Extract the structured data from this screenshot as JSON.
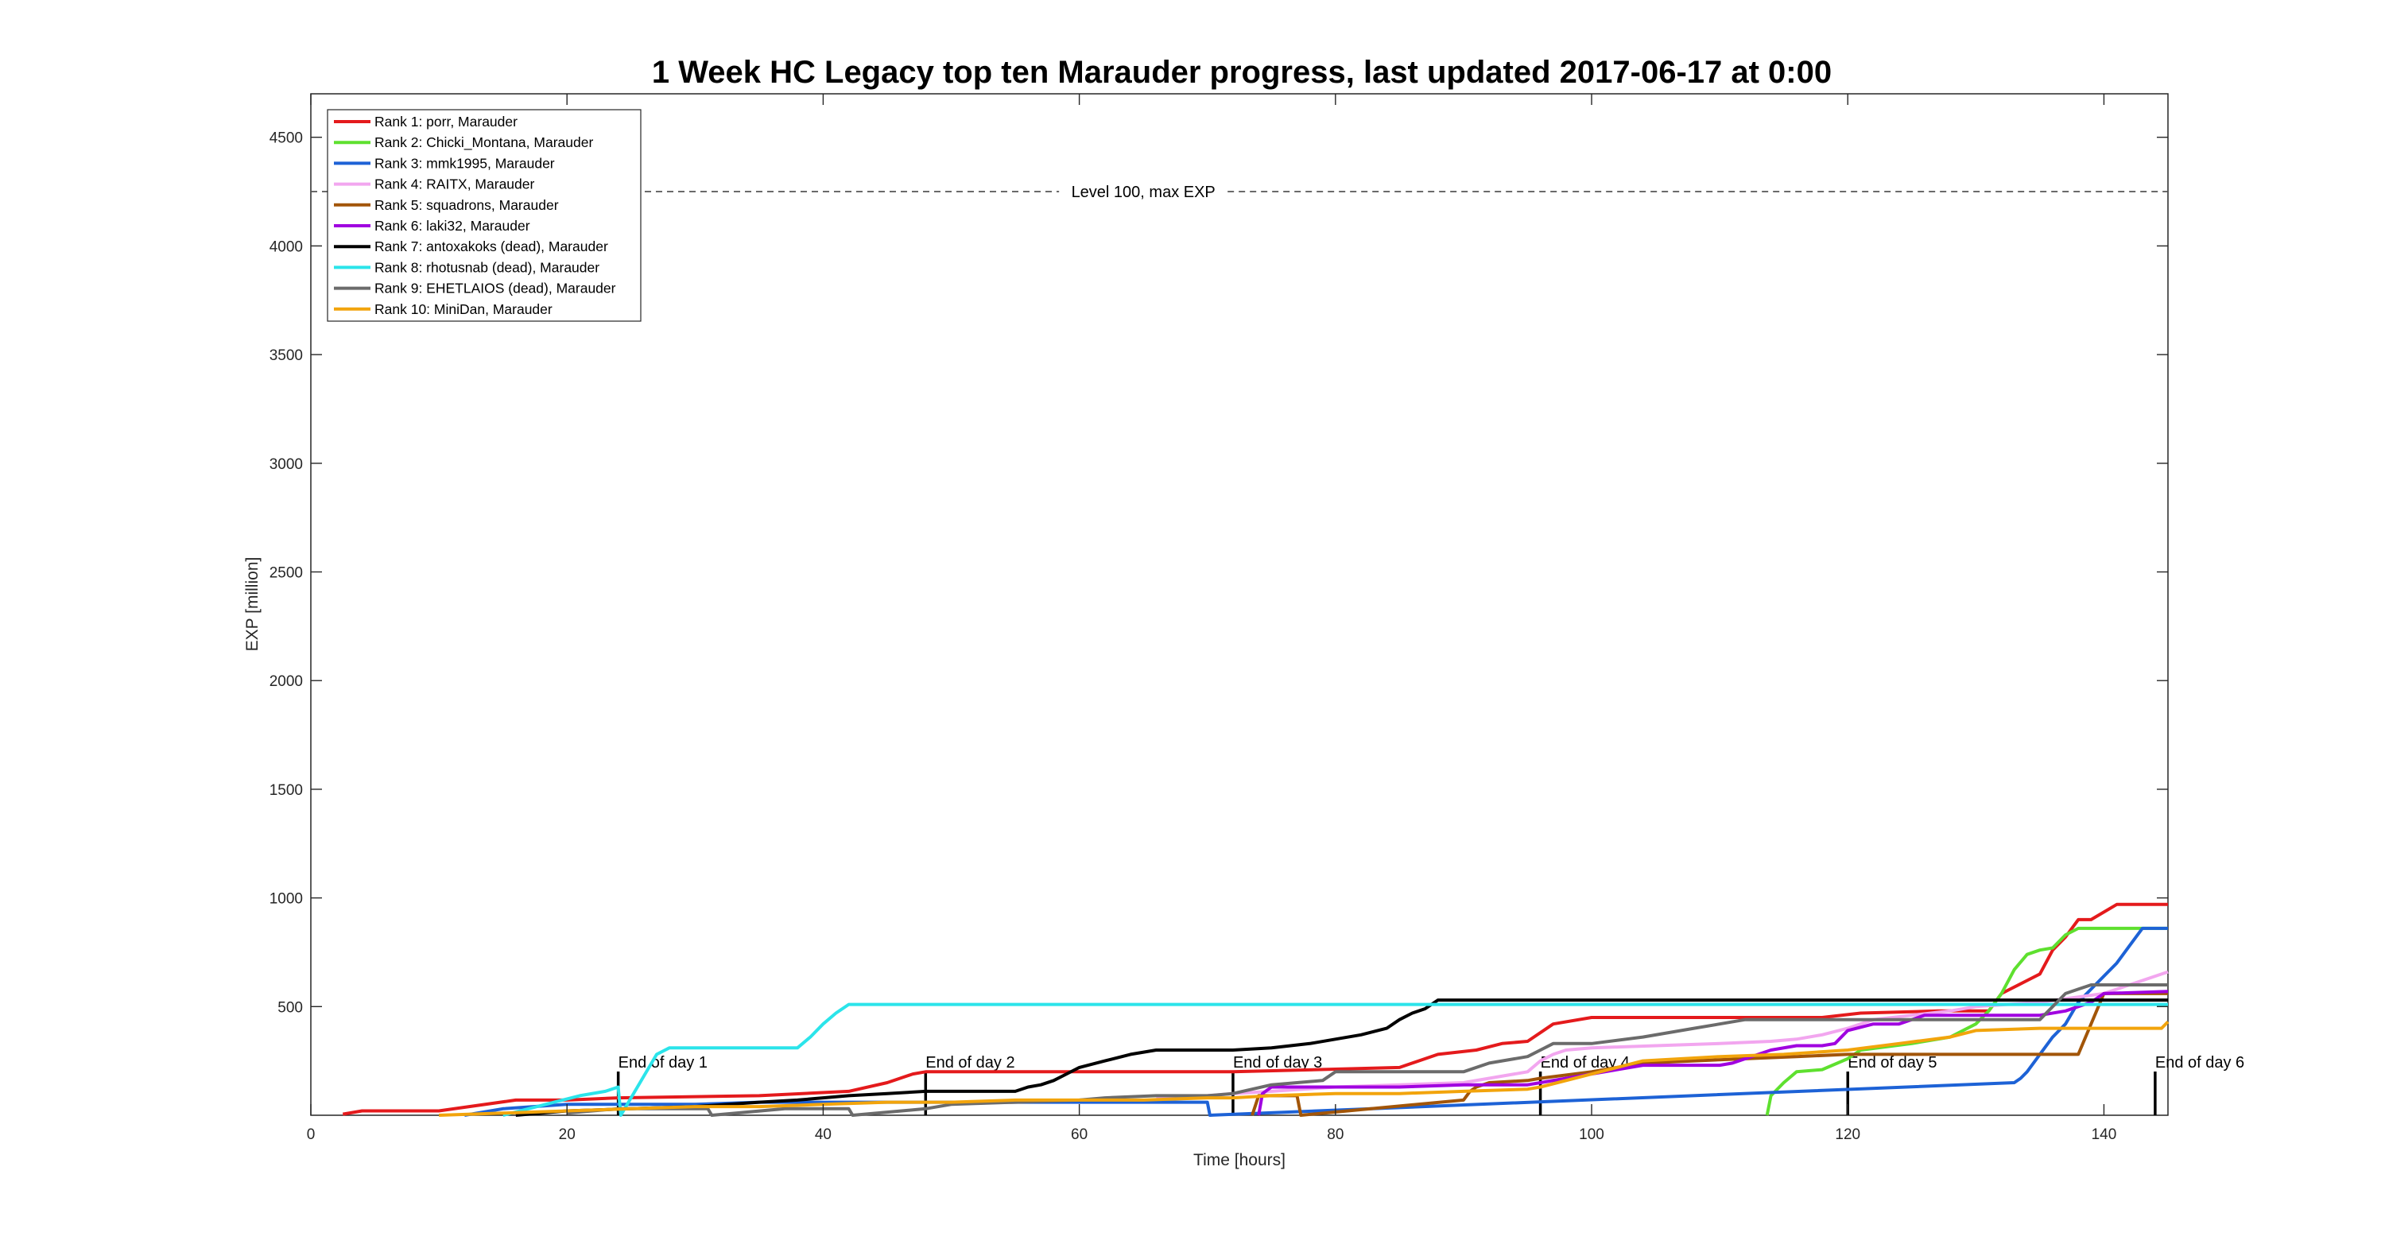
{
  "chart_data": {
    "type": "line",
    "title": "1 Week HC Legacy top ten Marauder progress, last updated 2017-06-17 at 0:00",
    "xlabel": "Time [hours]",
    "ylabel": "EXP [million]",
    "xlim": [
      0,
      145
    ],
    "ylim": [
      0,
      4700
    ],
    "xticks": [
      0,
      20,
      40,
      60,
      80,
      100,
      120,
      140
    ],
    "yticks": [
      500,
      1000,
      1500,
      2000,
      2500,
      3000,
      3500,
      4000,
      4500
    ],
    "grid": false,
    "legend_position": "top-left",
    "max_exp_line": {
      "y": 4250,
      "label": "Level 100, max EXP"
    },
    "day_markers": [
      {
        "x": 24,
        "label": "End of day 1"
      },
      {
        "x": 48,
        "label": "End of day 2"
      },
      {
        "x": 72,
        "label": "End of day 3"
      },
      {
        "x": 96,
        "label": "End of day 4"
      },
      {
        "x": 120,
        "label": "End of day 5"
      },
      {
        "x": 144,
        "label": "End of day 6"
      }
    ],
    "series": [
      {
        "name": "Rank 1: porr, Marauder",
        "color": "#e41a1c",
        "x": [
          2.5,
          4,
          10,
          16,
          17,
          20,
          24,
          35,
          42,
          45,
          47,
          48,
          55,
          57,
          72,
          85,
          88,
          91,
          93,
          95,
          97,
          100,
          110,
          118,
          121,
          127,
          131,
          132,
          134,
          135,
          136,
          137,
          138,
          139,
          141,
          145
        ],
        "y": [
          5,
          20,
          20,
          70,
          70,
          70,
          80,
          90,
          110,
          150,
          190,
          200,
          200,
          200,
          200,
          220,
          280,
          300,
          330,
          340,
          420,
          450,
          450,
          450,
          470,
          480,
          480,
          560,
          620,
          650,
          760,
          820,
          900,
          900,
          970,
          970
        ]
      },
      {
        "name": "Rank 2: Chicki_Montana, Marauder",
        "color": "#5ee02f",
        "x": [
          113.7,
          114,
          115,
          116,
          118,
          120,
          121,
          125,
          128,
          130,
          131,
          132,
          133,
          134,
          135,
          136,
          137,
          138,
          145
        ],
        "y": [
          0,
          90,
          150,
          200,
          210,
          260,
          300,
          330,
          360,
          420,
          480,
          560,
          670,
          740,
          760,
          770,
          830,
          860,
          860
        ]
      },
      {
        "name": "Rank 3: mmk1995, Marauder",
        "color": "#1d62d6",
        "x": [
          12,
          15,
          20,
          30,
          35,
          40,
          45,
          48,
          55,
          60,
          66,
          68,
          70,
          70.2,
          133,
          133.5,
          134,
          135,
          136,
          137,
          138,
          139,
          140,
          141,
          142,
          143,
          145
        ],
        "y": [
          0,
          30,
          50,
          50,
          60,
          60,
          60,
          60,
          60,
          60,
          60,
          60,
          60,
          0,
          150,
          170,
          200,
          280,
          360,
          420,
          520,
          580,
          640,
          700,
          780,
          860,
          860
        ]
      },
      {
        "name": "Rank 4: RAITX, Marauder",
        "color": "#f2a6ef",
        "x": [
          66,
          70,
          72,
          75,
          80,
          90,
          95,
          96,
          97,
          98,
          100,
          105,
          110,
          114,
          116,
          118,
          120,
          122,
          125,
          128,
          130,
          135,
          140,
          143,
          145
        ],
        "y": [
          80,
          90,
          100,
          110,
          130,
          150,
          200,
          250,
          280,
          300,
          310,
          320,
          330,
          340,
          350,
          370,
          400,
          440,
          460,
          480,
          500,
          520,
          560,
          620,
          660
        ]
      },
      {
        "name": "Rank 5: squadrons, Marauder",
        "color": "#a25508",
        "x": [
          73.5,
          74,
          75,
          76,
          77,
          77.3,
          90,
          90.5,
          91,
          92,
          95,
          96,
          100,
          104,
          108,
          112,
          116,
          120,
          125,
          130,
          136,
          138,
          140,
          145
        ],
        "y": [
          0,
          90,
          90,
          90,
          90,
          0,
          70,
          110,
          130,
          150,
          160,
          170,
          200,
          240,
          250,
          260,
          270,
          280,
          280,
          280,
          280,
          280,
          560,
          560
        ]
      },
      {
        "name": "Rank 6: laki32, Marauder",
        "color": "#a000e0",
        "x": [
          74,
          74.3,
          75,
          78,
          80,
          85,
          90,
          95,
          96,
          104,
          110,
          111,
          112,
          114,
          116,
          118,
          119,
          120,
          122,
          124,
          126,
          130,
          135,
          137,
          139,
          140,
          145
        ],
        "y": [
          0,
          100,
          130,
          130,
          130,
          130,
          140,
          140,
          150,
          230,
          230,
          240,
          260,
          300,
          320,
          320,
          330,
          390,
          420,
          420,
          460,
          460,
          460,
          480,
          520,
          560,
          570
        ]
      },
      {
        "name": "Rank 7: antoxakoks (dead), Marauder",
        "color": "#000000",
        "x": [
          16,
          18,
          20,
          25,
          30,
          35,
          38,
          40,
          42,
          45,
          48,
          50,
          55,
          56,
          57,
          58,
          59,
          60,
          62,
          64,
          66,
          68,
          72,
          75,
          78,
          80,
          82,
          84,
          85,
          86,
          87,
          88,
          145
        ],
        "y": [
          0,
          10,
          20,
          30,
          40,
          60,
          70,
          80,
          90,
          100,
          110,
          110,
          110,
          130,
          140,
          160,
          190,
          220,
          250,
          280,
          300,
          300,
          300,
          310,
          330,
          350,
          370,
          400,
          440,
          470,
          490,
          530,
          530
        ]
      },
      {
        "name": "Rank 8: rhotusnab (dead), Marauder",
        "color": "#2be4ea",
        "x": [
          15,
          17,
          19,
          21,
          23,
          24,
          24.2,
          27,
          28,
          30,
          35,
          38,
          39,
          40,
          41,
          42,
          60,
          80,
          88,
          145
        ],
        "y": [
          0,
          30,
          60,
          90,
          110,
          130,
          0,
          280,
          310,
          310,
          310,
          310,
          360,
          420,
          470,
          510,
          510,
          510,
          510,
          510
        ]
      },
      {
        "name": "Rank 9: EHETLAIOS (dead), Marauder",
        "color": "#6b6b6b",
        "x": [
          20,
          24,
          26,
          28,
          31,
          31.3,
          37,
          37.2,
          42,
          42.3,
          48,
          50,
          55,
          60,
          62,
          66,
          70,
          72,
          75,
          79,
          80,
          90,
          92,
          95,
          96,
          97,
          98,
          100,
          104,
          108,
          110,
          112,
          118,
          125,
          130,
          135,
          137,
          138,
          139,
          140,
          145
        ],
        "y": [
          10,
          30,
          30,
          30,
          30,
          0,
          30,
          30,
          30,
          0,
          30,
          50,
          60,
          70,
          80,
          90,
          90,
          100,
          140,
          160,
          200,
          200,
          240,
          270,
          300,
          330,
          330,
          330,
          360,
          400,
          420,
          440,
          440,
          440,
          440,
          440,
          560,
          580,
          600,
          600,
          600
        ]
      },
      {
        "name": "Rank 10: MiniDan, Marauder",
        "color": "#f2a40c",
        "x": [
          10,
          15,
          20,
          25,
          30,
          35,
          40,
          45,
          48,
          50,
          55,
          60,
          65,
          70,
          72,
          75,
          80,
          85,
          90,
          95,
          96,
          104,
          110,
          115,
          120,
          124,
          128,
          130,
          135,
          140,
          144.5,
          145
        ],
        "y": [
          0,
          10,
          20,
          30,
          40,
          40,
          50,
          60,
          60,
          60,
          70,
          70,
          70,
          80,
          80,
          90,
          100,
          100,
          110,
          120,
          130,
          250,
          270,
          280,
          300,
          330,
          360,
          390,
          400,
          400,
          400,
          430
        ]
      }
    ]
  }
}
